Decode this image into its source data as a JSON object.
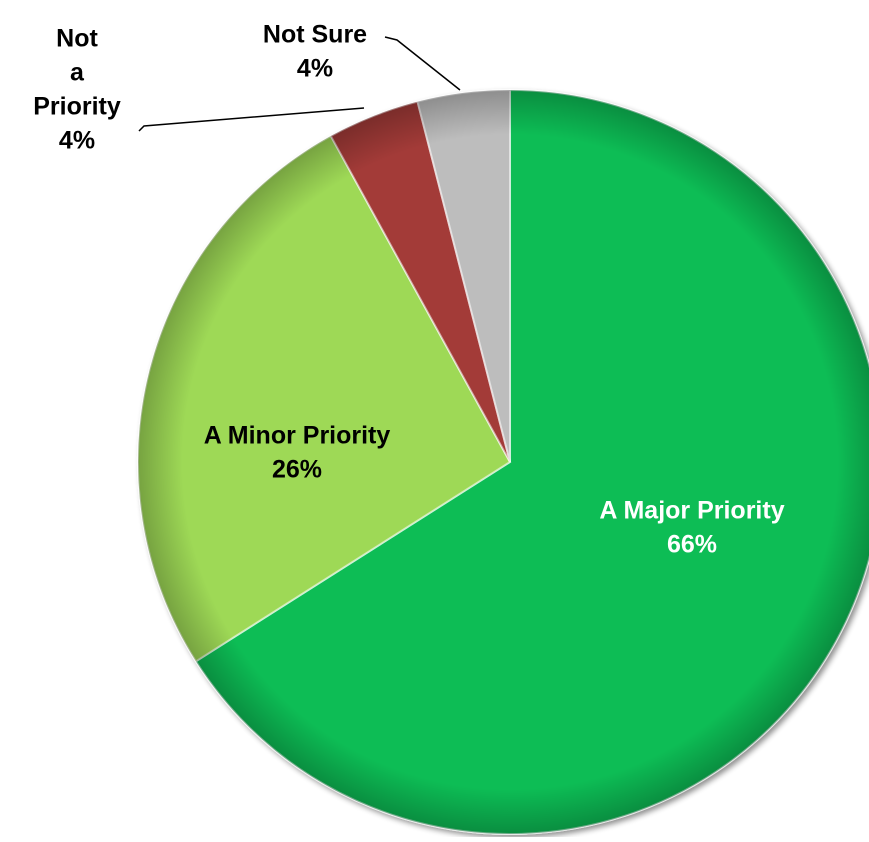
{
  "chart_data": {
    "type": "pie",
    "categories": [
      "A Major Priority",
      "A Minor Priority",
      "Not a Priority",
      "Not Sure"
    ],
    "values": [
      66,
      26,
      4,
      4
    ],
    "series": [
      {
        "values": [
          66,
          26,
          4,
          4
        ]
      }
    ],
    "labels": [
      {
        "name_lines": [
          "A Major Priority"
        ],
        "value_label": "66%"
      },
      {
        "name_lines": [
          "A Minor Priority"
        ],
        "value_label": "26%"
      },
      {
        "name_lines": [
          "Not",
          "a",
          "Priority"
        ],
        "value_label": "4%"
      },
      {
        "name_lines": [
          "Not Sure"
        ],
        "value_label": "4%"
      }
    ],
    "colors": [
      "#08bd54",
      "#9ed957",
      "#a33b39",
      "#bdbdbd"
    ],
    "label_colors": [
      "#ffffff",
      "#000000",
      "#000000",
      "#000000"
    ],
    "start": "top, clockwise",
    "title": "",
    "legend": "none"
  }
}
